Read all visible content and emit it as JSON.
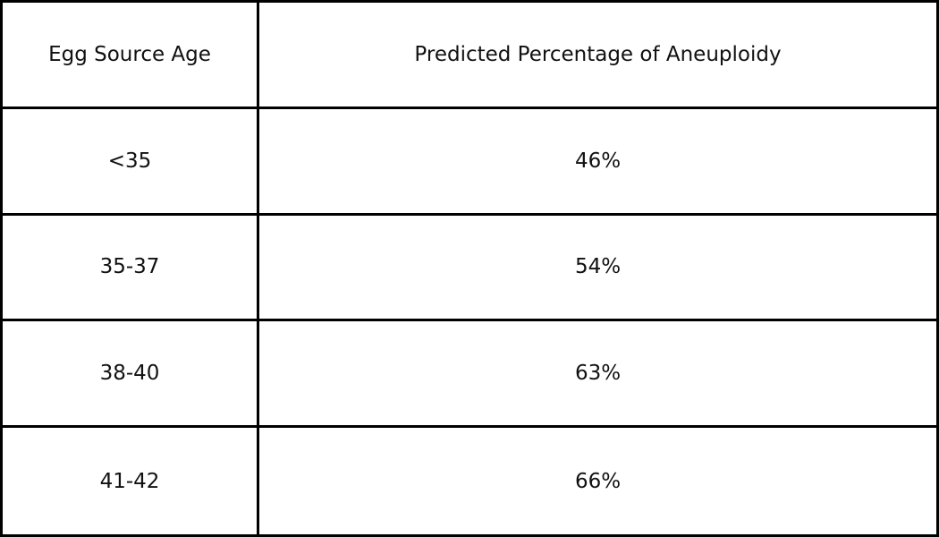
{
  "table": {
    "headers": [
      "Egg Source Age",
      "Predicted Percentage of Aneuploidy"
    ],
    "rows": [
      [
        "<35",
        "46%"
      ],
      [
        "35-37",
        "54%"
      ],
      [
        "38-40",
        "63%"
      ],
      [
        "41-42",
        "66%"
      ]
    ]
  }
}
